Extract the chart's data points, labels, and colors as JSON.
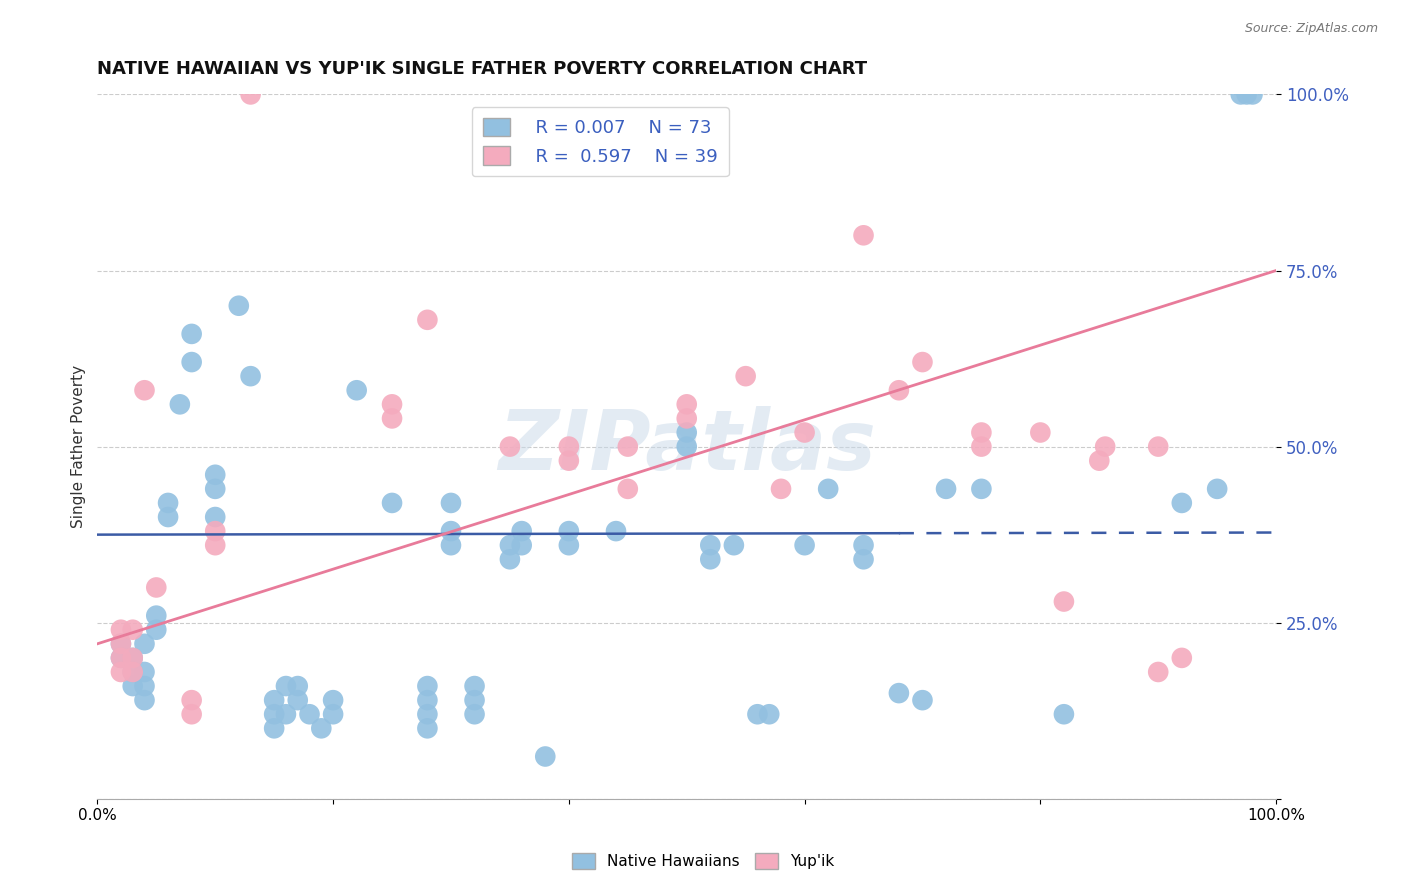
{
  "title": "NATIVE HAWAIIAN VS YUP'IK SINGLE FATHER POVERTY CORRELATION CHART",
  "source": "Source: ZipAtlas.com",
  "ylabel": "Single Father Poverty",
  "watermark": "ZIPatlas",
  "R_blue": 0.007,
  "N_blue": 73,
  "R_pink": 0.597,
  "N_pink": 39,
  "blue_color": "#92C0E0",
  "pink_color": "#F4ABBE",
  "line_blue": "#3B5BA5",
  "line_pink": "#E87B9A",
  "blue_scatter": [
    [
      0.02,
      0.2
    ],
    [
      0.02,
      0.22
    ],
    [
      0.03,
      0.2
    ],
    [
      0.03,
      0.18
    ],
    [
      0.03,
      0.16
    ],
    [
      0.04,
      0.22
    ],
    [
      0.04,
      0.18
    ],
    [
      0.04,
      0.16
    ],
    [
      0.04,
      0.14
    ],
    [
      0.05,
      0.26
    ],
    [
      0.05,
      0.24
    ],
    [
      0.06,
      0.42
    ],
    [
      0.06,
      0.4
    ],
    [
      0.07,
      0.56
    ],
    [
      0.08,
      0.66
    ],
    [
      0.08,
      0.62
    ],
    [
      0.1,
      0.46
    ],
    [
      0.1,
      0.44
    ],
    [
      0.1,
      0.4
    ],
    [
      0.12,
      0.7
    ],
    [
      0.13,
      0.6
    ],
    [
      0.15,
      0.14
    ],
    [
      0.15,
      0.12
    ],
    [
      0.15,
      0.1
    ],
    [
      0.16,
      0.16
    ],
    [
      0.16,
      0.12
    ],
    [
      0.17,
      0.16
    ],
    [
      0.17,
      0.14
    ],
    [
      0.18,
      0.12
    ],
    [
      0.19,
      0.1
    ],
    [
      0.2,
      0.14
    ],
    [
      0.2,
      0.12
    ],
    [
      0.22,
      0.58
    ],
    [
      0.25,
      0.42
    ],
    [
      0.28,
      0.16
    ],
    [
      0.28,
      0.14
    ],
    [
      0.28,
      0.12
    ],
    [
      0.28,
      0.1
    ],
    [
      0.3,
      0.42
    ],
    [
      0.3,
      0.38
    ],
    [
      0.3,
      0.36
    ],
    [
      0.32,
      0.16
    ],
    [
      0.32,
      0.14
    ],
    [
      0.32,
      0.12
    ],
    [
      0.35,
      0.36
    ],
    [
      0.35,
      0.34
    ],
    [
      0.36,
      0.38
    ],
    [
      0.36,
      0.36
    ],
    [
      0.38,
      0.06
    ],
    [
      0.4,
      0.38
    ],
    [
      0.4,
      0.36
    ],
    [
      0.44,
      0.38
    ],
    [
      0.5,
      0.52
    ],
    [
      0.5,
      0.5
    ],
    [
      0.52,
      0.36
    ],
    [
      0.52,
      0.34
    ],
    [
      0.54,
      0.36
    ],
    [
      0.56,
      0.12
    ],
    [
      0.57,
      0.12
    ],
    [
      0.6,
      0.36
    ],
    [
      0.62,
      0.44
    ],
    [
      0.65,
      0.36
    ],
    [
      0.65,
      0.34
    ],
    [
      0.68,
      0.15
    ],
    [
      0.7,
      0.14
    ],
    [
      0.72,
      0.44
    ],
    [
      0.75,
      0.44
    ],
    [
      0.82,
      0.12
    ],
    [
      0.92,
      0.42
    ],
    [
      0.95,
      0.44
    ],
    [
      0.97,
      1.0
    ],
    [
      0.975,
      1.0
    ],
    [
      0.98,
      1.0
    ]
  ],
  "pink_scatter": [
    [
      0.02,
      0.24
    ],
    [
      0.02,
      0.22
    ],
    [
      0.02,
      0.2
    ],
    [
      0.02,
      0.18
    ],
    [
      0.03,
      0.24
    ],
    [
      0.03,
      0.2
    ],
    [
      0.03,
      0.18
    ],
    [
      0.04,
      0.58
    ],
    [
      0.05,
      0.3
    ],
    [
      0.08,
      0.14
    ],
    [
      0.08,
      0.12
    ],
    [
      0.1,
      0.38
    ],
    [
      0.1,
      0.36
    ],
    [
      0.13,
      1.0
    ],
    [
      0.25,
      0.56
    ],
    [
      0.25,
      0.54
    ],
    [
      0.28,
      0.68
    ],
    [
      0.35,
      0.5
    ],
    [
      0.4,
      0.5
    ],
    [
      0.4,
      0.48
    ],
    [
      0.45,
      0.44
    ],
    [
      0.45,
      0.5
    ],
    [
      0.5,
      0.56
    ],
    [
      0.5,
      0.54
    ],
    [
      0.55,
      0.6
    ],
    [
      0.58,
      0.44
    ],
    [
      0.6,
      0.52
    ],
    [
      0.65,
      0.8
    ],
    [
      0.68,
      0.58
    ],
    [
      0.7,
      0.62
    ],
    [
      0.75,
      0.52
    ],
    [
      0.75,
      0.5
    ],
    [
      0.8,
      0.52
    ],
    [
      0.82,
      0.28
    ],
    [
      0.85,
      0.48
    ],
    [
      0.855,
      0.5
    ],
    [
      0.9,
      0.5
    ],
    [
      0.9,
      0.18
    ],
    [
      0.92,
      0.2
    ]
  ],
  "blue_line_x": [
    0.0,
    1.0
  ],
  "blue_line_y": [
    0.375,
    0.378
  ],
  "pink_line_x": [
    0.0,
    1.0
  ],
  "pink_line_y": [
    0.22,
    0.75
  ],
  "xlim": [
    0.0,
    1.0
  ],
  "ylim": [
    0.0,
    1.0
  ],
  "yticks": [
    0.0,
    0.25,
    0.5,
    0.75,
    1.0
  ],
  "ytick_labels": [
    "",
    "25.0%",
    "50.0%",
    "75.0%",
    "100.0%"
  ],
  "xtick_labels": [
    "0.0%",
    "",
    "",
    "",
    "",
    "100.0%"
  ],
  "xtick_positions": [
    0.0,
    0.2,
    0.4,
    0.6,
    0.8,
    1.0
  ],
  "background_color": "#ffffff",
  "grid_color": "#cccccc",
  "title_fontsize": 13,
  "axis_fontsize": 11,
  "legend_fontsize": 13
}
